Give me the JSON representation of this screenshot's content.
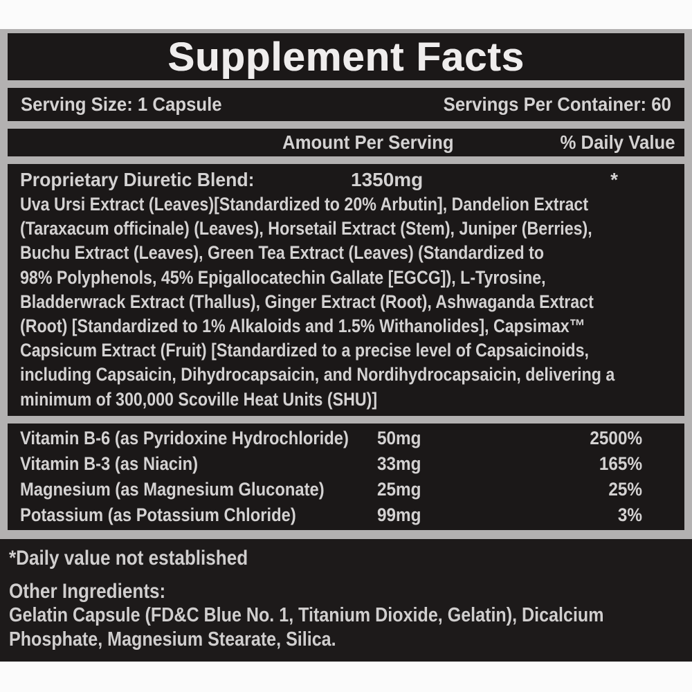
{
  "title": "Supplement Facts",
  "serving": {
    "size_label": "Serving Size:",
    "size_value": "1 Capsule",
    "per_container_label": "Servings Per Container:",
    "per_container_value": "60"
  },
  "columns": {
    "amount": "Amount Per Serving",
    "daily_value": "% Daily Value"
  },
  "blend": {
    "name": "Proprietary Diuretic Blend:",
    "amount": "1350mg",
    "daily_value": "*",
    "description_lines": [
      "Uva Ursi Extract (Leaves)[Standardized to 20% Arbutin], Dandelion Extract",
      "(Taraxacum officinale) (Leaves), Horsetail Extract (Stem), Juniper (Berries),",
      "Buchu Extract (Leaves), Green Tea Extract (Leaves) (Standardized to",
      "98% Polyphenols, 45% Epigallocatechin Gallate [EGCG]), L-Tyrosine,",
      "Bladderwrack Extract (Thallus), Ginger Extract (Root), Ashwaganda Extract",
      "(Root) [Standardized to 1% Alkaloids and 1.5% Withanolides], Capsimax™",
      "Capsicum Extract (Fruit) [Standardized to a precise level of Capsaicinoids,",
      "including Capsaicin, Dihydrocapsaicin, and Nordihydrocapsaicin, delivering a",
      "minimum of 300,000 Scoville Heat Units (SHU)]"
    ]
  },
  "nutrients": [
    {
      "name": "Vitamin B-6 (as Pyridoxine Hydrochloride)",
      "amount": "50mg",
      "daily_value": "2500%"
    },
    {
      "name": "Vitamin B-3 (as Niacin)",
      "amount": "33mg",
      "daily_value": "165%"
    },
    {
      "name": "Magnesium (as Magnesium Gluconate)",
      "amount": "25mg",
      "daily_value": "25%"
    },
    {
      "name": "Potassium (as Potassium Chloride)",
      "amount": "99mg",
      "daily_value": "3%"
    }
  ],
  "footnote": "*Daily value not established",
  "other_ingredients": {
    "label": "Other Ingredients:",
    "lines": [
      "Gelatin Capsule (FD&C Blue No. 1, Titanium Dioxide, Gelatin), Dicalcium",
      "Phosphate, Magnesium Stearate, Silica."
    ]
  },
  "colors": {
    "page_background": "#fbfbfb",
    "frame_silver": "#b3b1b1",
    "panel_black": "#1b1818",
    "bottom_black": "#1d1a1a",
    "text_light": "#d4d2d2",
    "title_white": "#efeded"
  }
}
